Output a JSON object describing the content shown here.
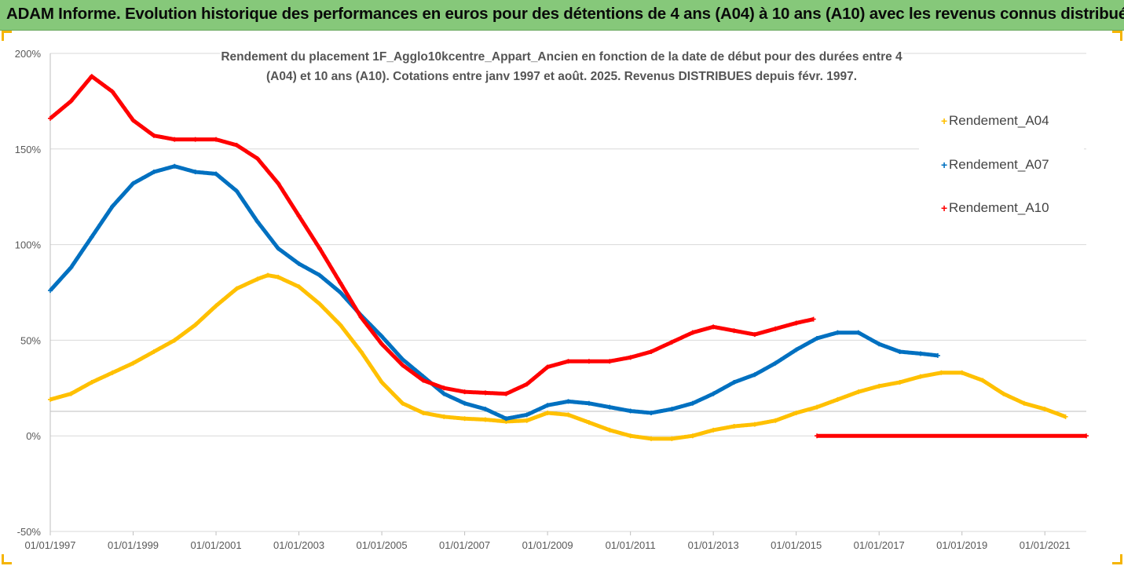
{
  "header": {
    "title": "ADAM Informe. Evolution historique des performances en euros pour des détentions de 4 ans (A04) à 10 ans (A10) avec les revenus connus distribués"
  },
  "chart_data": {
    "type": "scatter",
    "title": "Rendement du placement 1F_Agglo10kcentre_Appart_Ancien en fonction de la date de début pour des durées entre 4 (A04) et 10 ans (A10). Cotations entre janv 1997 et août. 2025. Revenus DISTRIBUES depuis févr. 1997.",
    "xlabel": "",
    "ylabel": "",
    "xlim": [
      "1997-01-01",
      "2022-01-01"
    ],
    "ylim": [
      -50,
      200
    ],
    "yticks": [
      "-50%",
      "0%",
      "50%",
      "100%",
      "150%",
      "200%"
    ],
    "xticks": [
      "01/01/1997",
      "01/01/1999",
      "01/01/2001",
      "01/01/2003",
      "01/01/2005",
      "01/01/2007",
      "01/01/2009",
      "01/01/2011",
      "01/01/2013",
      "01/01/2015",
      "01/01/2017",
      "01/01/2019",
      "01/01/2021"
    ],
    "grid": "horizontal",
    "legend_position": "right",
    "series": [
      {
        "name": "Rendement_A04",
        "color": "#ffc000",
        "points": [
          [
            "1997-01",
            19
          ],
          [
            "1997-07",
            22
          ],
          [
            "1998-01",
            28
          ],
          [
            "1998-07",
            33
          ],
          [
            "1999-01",
            38
          ],
          [
            "1999-07",
            44
          ],
          [
            "2000-01",
            50
          ],
          [
            "2000-07",
            58
          ],
          [
            "2001-01",
            68
          ],
          [
            "2001-07",
            77
          ],
          [
            "2002-01",
            82
          ],
          [
            "2002-04",
            84
          ],
          [
            "2002-07",
            83
          ],
          [
            "2003-01",
            78
          ],
          [
            "2003-07",
            69
          ],
          [
            "2004-01",
            58
          ],
          [
            "2004-07",
            44
          ],
          [
            "2005-01",
            28
          ],
          [
            "2005-07",
            17
          ],
          [
            "2006-01",
            12
          ],
          [
            "2006-07",
            10
          ],
          [
            "2007-01",
            9
          ],
          [
            "2007-07",
            8.5
          ],
          [
            "2008-01",
            7.5
          ],
          [
            "2008-07",
            8
          ],
          [
            "2009-01",
            12
          ],
          [
            "2009-07",
            11
          ],
          [
            "2010-01",
            7
          ],
          [
            "2010-07",
            3
          ],
          [
            "2011-01",
            0
          ],
          [
            "2011-07",
            -1.5
          ],
          [
            "2012-01",
            -1.5
          ],
          [
            "2012-07",
            0
          ],
          [
            "2013-01",
            3
          ],
          [
            "2013-07",
            5
          ],
          [
            "2014-01",
            6
          ],
          [
            "2014-07",
            8
          ],
          [
            "2015-01",
            12
          ],
          [
            "2015-07",
            15
          ],
          [
            "2016-01",
            19
          ],
          [
            "2016-07",
            23
          ],
          [
            "2017-01",
            26
          ],
          [
            "2017-07",
            28
          ],
          [
            "2018-01",
            31
          ],
          [
            "2018-07",
            33
          ],
          [
            "2019-01",
            33
          ],
          [
            "2019-07",
            29
          ],
          [
            "2020-01",
            22
          ],
          [
            "2020-07",
            17
          ],
          [
            "2021-01",
            14
          ],
          [
            "2021-07",
            10
          ]
        ]
      },
      {
        "name": "Rendement_A07",
        "color": "#0070c0",
        "points": [
          [
            "1997-01",
            76
          ],
          [
            "1997-07",
            88
          ],
          [
            "1998-01",
            104
          ],
          [
            "1998-07",
            120
          ],
          [
            "1999-01",
            132
          ],
          [
            "1999-07",
            138
          ],
          [
            "2000-01",
            141
          ],
          [
            "2000-07",
            138
          ],
          [
            "2001-01",
            137
          ],
          [
            "2001-07",
            128
          ],
          [
            "2002-01",
            112
          ],
          [
            "2002-07",
            98
          ],
          [
            "2003-01",
            90
          ],
          [
            "2003-07",
            84
          ],
          [
            "2004-01",
            75
          ],
          [
            "2004-07",
            63
          ],
          [
            "2005-01",
            52
          ],
          [
            "2005-07",
            40
          ],
          [
            "2006-01",
            31
          ],
          [
            "2006-07",
            22
          ],
          [
            "2007-01",
            17
          ],
          [
            "2007-07",
            14
          ],
          [
            "2008-01",
            9
          ],
          [
            "2008-07",
            11
          ],
          [
            "2009-01",
            16
          ],
          [
            "2009-07",
            18
          ],
          [
            "2010-01",
            17
          ],
          [
            "2010-07",
            15
          ],
          [
            "2011-01",
            13
          ],
          [
            "2011-07",
            12
          ],
          [
            "2012-01",
            14
          ],
          [
            "2012-07",
            17
          ],
          [
            "2013-01",
            22
          ],
          [
            "2013-07",
            28
          ],
          [
            "2014-01",
            32
          ],
          [
            "2014-07",
            38
          ],
          [
            "2015-01",
            45
          ],
          [
            "2015-07",
            51
          ],
          [
            "2016-01",
            54
          ],
          [
            "2016-07",
            54
          ],
          [
            "2017-01",
            48
          ],
          [
            "2017-07",
            44
          ],
          [
            "2018-01",
            43
          ],
          [
            "2018-06",
            42
          ]
        ]
      },
      {
        "name": "Rendement_A10",
        "color": "#ff0000",
        "points": [
          [
            "1997-01",
            166
          ],
          [
            "1997-07",
            175
          ],
          [
            "1998-01",
            188
          ],
          [
            "1998-07",
            180
          ],
          [
            "1999-01",
            165
          ],
          [
            "1999-07",
            157
          ],
          [
            "2000-01",
            155
          ],
          [
            "2000-07",
            155
          ],
          [
            "2001-01",
            155
          ],
          [
            "2001-07",
            152
          ],
          [
            "2002-01",
            145
          ],
          [
            "2002-07",
            132
          ],
          [
            "2003-01",
            115
          ],
          [
            "2003-07",
            98
          ],
          [
            "2004-01",
            80
          ],
          [
            "2004-07",
            62
          ],
          [
            "2005-01",
            48
          ],
          [
            "2005-07",
            37
          ],
          [
            "2006-01",
            29
          ],
          [
            "2006-07",
            25
          ],
          [
            "2007-01",
            23
          ],
          [
            "2007-07",
            22.5
          ],
          [
            "2008-01",
            22
          ],
          [
            "2008-07",
            27
          ],
          [
            "2009-01",
            36
          ],
          [
            "2009-07",
            39
          ],
          [
            "2010-01",
            39
          ],
          [
            "2010-07",
            39
          ],
          [
            "2011-01",
            41
          ],
          [
            "2011-07",
            44
          ],
          [
            "2012-01",
            49
          ],
          [
            "2012-07",
            54
          ],
          [
            "2013-01",
            57
          ],
          [
            "2013-07",
            55
          ],
          [
            "2014-01",
            53
          ],
          [
            "2014-07",
            56
          ],
          [
            "2015-01",
            59
          ],
          [
            "2015-06",
            61
          ]
        ],
        "zero_segment": [
          [
            "2015-07",
            0
          ],
          [
            "2022-01",
            0
          ]
        ]
      }
    ]
  }
}
